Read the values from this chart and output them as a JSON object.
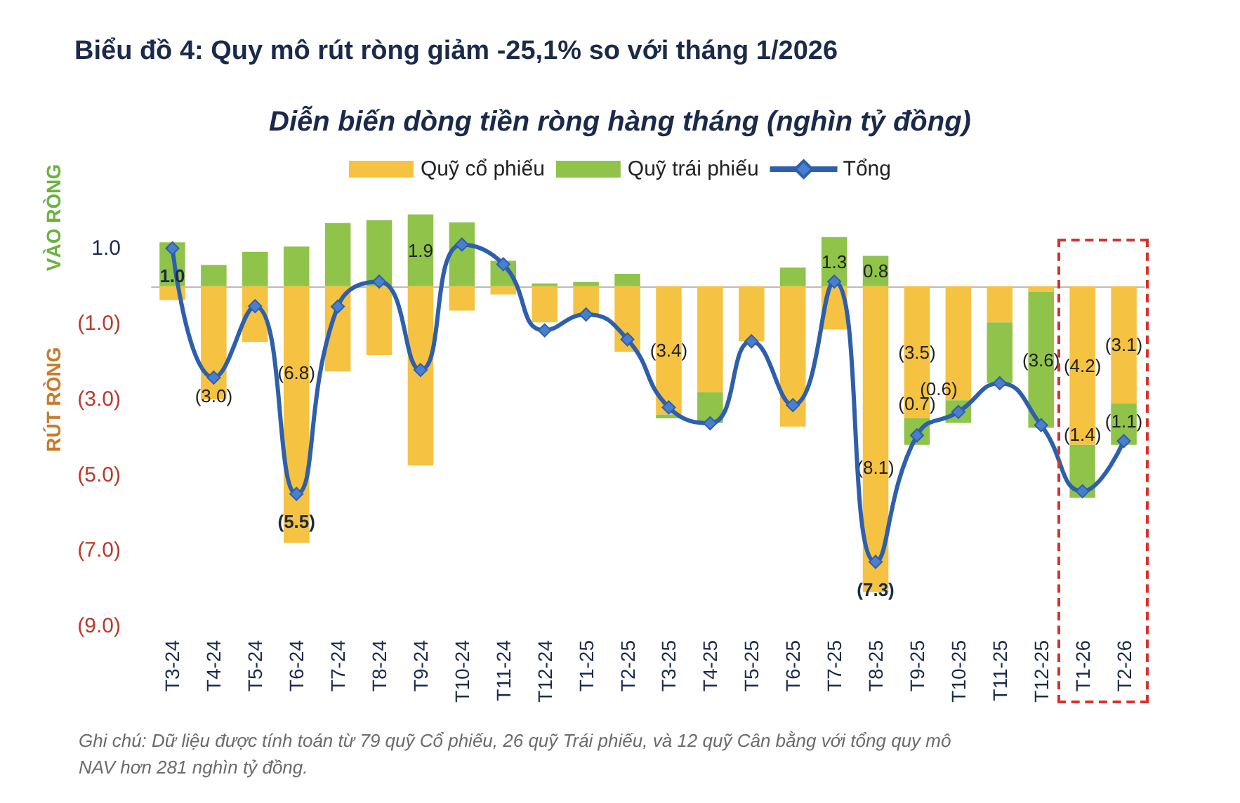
{
  "chart_data": {
    "type": "bar",
    "stacked": true,
    "title": "Biểu đồ 4: Quy mô rút ròng giảm -25,1% so với tháng 1/2026",
    "subtitle": "Diễn biến dòng tiền ròng hàng tháng (nghìn tỷ đồng)",
    "categories": [
      "T3-24",
      "T4-24",
      "T5-24",
      "T6-24",
      "T7-24",
      "T8-24",
      "T9-24",
      "T10-24",
      "T11-24",
      "T12-24",
      "T1-25",
      "T2-25",
      "T3-25",
      "T4-25",
      "T5-25",
      "T6-25",
      "T7-25",
      "T8-25",
      "T9-25",
      "T10-25",
      "T11-25",
      "T12-25",
      "T1-26",
      "T2-26"
    ],
    "series": [
      {
        "name": "Quỹ cổ phiếu",
        "color": "#f5c242",
        "values": [
          -0.37,
          -3.0,
          -1.48,
          -6.8,
          -2.26,
          -1.83,
          -4.75,
          -0.65,
          -0.22,
          -0.96,
          -0.78,
          -1.74,
          -3.4,
          -2.81,
          -1.46,
          -3.72,
          -1.15,
          -8.1,
          -3.5,
          -3.02,
          -0.96,
          -0.15,
          -4.2,
          -3.1
        ],
        "value_labels": [
          null,
          "(3.0)",
          null,
          "(6.8)",
          null,
          null,
          null,
          null,
          null,
          null,
          null,
          null,
          "(3.4)",
          null,
          null,
          null,
          null,
          "(8.1)",
          "(3.5)",
          null,
          null,
          null,
          "(4.2)",
          "(3.1)"
        ]
      },
      {
        "name": "Quỹ trái phiếu",
        "color": "#8fc34a",
        "values": [
          1.16,
          0.56,
          0.91,
          1.05,
          1.67,
          1.75,
          1.9,
          1.69,
          0.67,
          0.07,
          0.11,
          0.33,
          -0.1,
          -0.81,
          null,
          0.49,
          1.3,
          0.8,
          -0.7,
          -0.6,
          -1.6,
          -3.6,
          -1.4,
          -1.1
        ],
        "value_labels": [
          null,
          null,
          null,
          null,
          null,
          null,
          "1.9",
          null,
          null,
          null,
          null,
          null,
          null,
          null,
          null,
          null,
          "1.3",
          "0.8",
          "(0.7)",
          "(0.6)",
          null,
          "(3.6)",
          "(1.4)",
          "(1.1)"
        ]
      },
      {
        "name": "Tổng",
        "type": "line",
        "color": "#2e5fac",
        "values": [
          1.0,
          -2.42,
          -0.53,
          -5.5,
          -0.54,
          0.12,
          -2.22,
          1.1,
          0.58,
          -1.17,
          -0.75,
          -1.41,
          -3.21,
          -3.63,
          -1.46,
          -3.15,
          0.12,
          -7.3,
          -3.95,
          -3.33,
          -2.57,
          -3.68,
          -5.43,
          -4.1
        ],
        "value_labels": [
          "1.0",
          null,
          null,
          "(5.5)",
          null,
          null,
          null,
          null,
          null,
          null,
          null,
          null,
          null,
          null,
          null,
          null,
          null,
          "(7.3)",
          null,
          null,
          null,
          null,
          null,
          null
        ]
      }
    ],
    "ylim": [
      -9,
      2
    ],
    "yticks": [
      {
        "value": 1,
        "label": "1.0"
      },
      {
        "value": -1,
        "label": "(1.0)"
      },
      {
        "value": -3,
        "label": "(3.0)"
      },
      {
        "value": -5,
        "label": "(5.0)"
      },
      {
        "value": -7,
        "label": "(7.0)"
      },
      {
        "value": -9,
        "label": "(9.0)"
      }
    ],
    "marker": "diamond",
    "grid": false,
    "legend": "top",
    "annotations": [
      "VÀO RÒNG",
      "RÚT RÒNG",
      "Ghi chú: Dữ liệu được tính toán từ 79 quỹ Cổ phiếu, 26 quỹ Trái phiếu, và 12 quỹ Cân bằng với tổng quy mô NAV hơn 281 nghìn tỷ đồng."
    ]
  }
}
